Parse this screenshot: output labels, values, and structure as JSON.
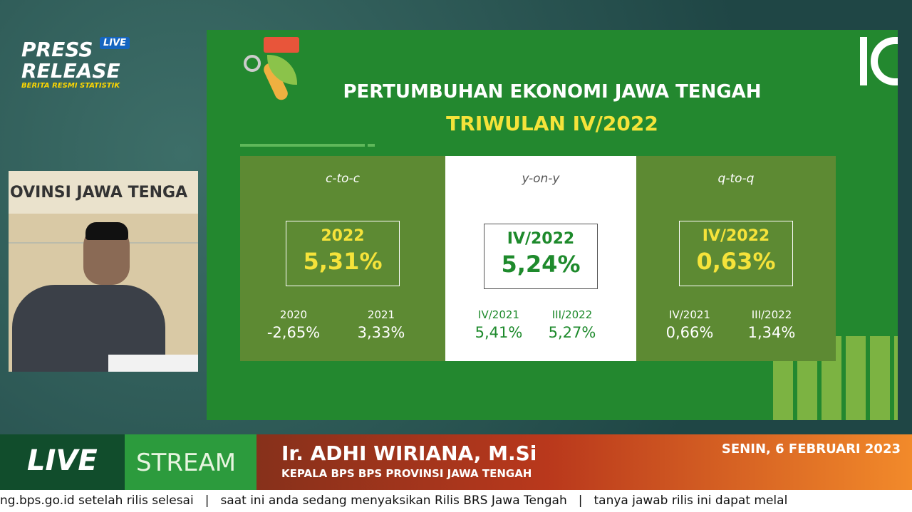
{
  "branding": {
    "title_line1": "PRESS",
    "title_line2": "RELEASE",
    "badge": "LIVE",
    "subtitle": "BERITA RESMI STATISTIK"
  },
  "video": {
    "wall_text": "OVINSI JAWA TENGA"
  },
  "slide": {
    "title": "PERTUMBUHAN EKONOMI JAWA TENGAH",
    "subtitle": "TRIWULAN IV/2022",
    "panels": [
      {
        "method": "c-to-c",
        "main_label": "2022",
        "main_value": "5,31%",
        "compare": [
          {
            "label": "2020",
            "value": "-2,65%"
          },
          {
            "label": "2021",
            "value": "3,33%"
          }
        ]
      },
      {
        "method": "y-on-y",
        "main_label": "IV/2022",
        "main_value": "5,24%",
        "compare": [
          {
            "label": "IV/2021",
            "value": "5,41%"
          },
          {
            "label": "III/2022",
            "value": "5,27%"
          }
        ]
      },
      {
        "method": "q-to-q",
        "main_label": "IV/2022",
        "main_value": "0,63%",
        "compare": [
          {
            "label": "IV/2021",
            "value": "0,66%"
          },
          {
            "label": "III/2022",
            "value": "1,34%"
          }
        ]
      }
    ]
  },
  "lower_third": {
    "live": "LIVE",
    "stream": "STREAM",
    "speaker_name": "Ir. ADHI WIRIANA, M.Si",
    "speaker_role": "KEPALA BPS BPS PROVINSI JAWA TENGAH",
    "date": "SENIN, 6 FEBRUARI 2023"
  },
  "ticker": [
    "ng.bps.go.id setelah rilis selesai",
    "saat ini anda sedang menyaksikan Rilis BRS Jawa Tengah",
    "tanya jawab rilis ini dapat melal"
  ]
}
